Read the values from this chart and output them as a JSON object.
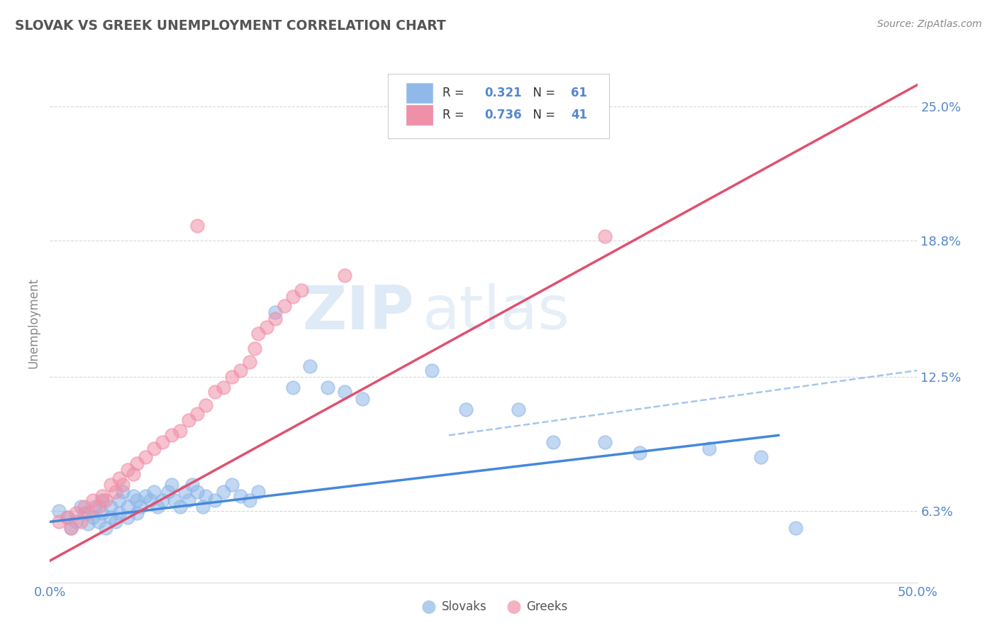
{
  "title": "SLOVAK VS GREEK UNEMPLOYMENT CORRELATION CHART",
  "source": "Source: ZipAtlas.com",
  "ylabel": "Unemployment",
  "xlim": [
    0.0,
    0.5
  ],
  "ylim": [
    0.03,
    0.27
  ],
  "yticks": [
    0.063,
    0.125,
    0.188,
    0.25
  ],
  "ytick_labels": [
    "6.3%",
    "12.5%",
    "18.8%",
    "25.0%"
  ],
  "slovak_color": "#90b8e8",
  "greek_color": "#f090a8",
  "slovak_line_color": "#4488dd",
  "greek_line_color": "#e05070",
  "dashed_line_color": "#90b8e8",
  "r_slovak": 0.321,
  "n_slovak": 61,
  "r_greek": 0.736,
  "n_greek": 41,
  "legend_label_slovak": "Slovaks",
  "legend_label_greek": "Greeks",
  "watermark_zip": "ZIP",
  "watermark_atlas": "atlas",
  "background_color": "#ffffff",
  "grid_color": "#cccccc",
  "title_color": "#555555",
  "axis_label_color": "#5588cc",
  "slovak_points": [
    [
      0.005,
      0.063
    ],
    [
      0.01,
      0.06
    ],
    [
      0.012,
      0.055
    ],
    [
      0.015,
      0.058
    ],
    [
      0.018,
      0.065
    ],
    [
      0.02,
      0.062
    ],
    [
      0.022,
      0.057
    ],
    [
      0.025,
      0.06
    ],
    [
      0.026,
      0.065
    ],
    [
      0.028,
      0.058
    ],
    [
      0.03,
      0.062
    ],
    [
      0.03,
      0.068
    ],
    [
      0.032,
      0.055
    ],
    [
      0.035,
      0.06
    ],
    [
      0.035,
      0.065
    ],
    [
      0.038,
      0.058
    ],
    [
      0.04,
      0.062
    ],
    [
      0.04,
      0.068
    ],
    [
      0.042,
      0.072
    ],
    [
      0.045,
      0.06
    ],
    [
      0.045,
      0.065
    ],
    [
      0.048,
      0.07
    ],
    [
      0.05,
      0.062
    ],
    [
      0.05,
      0.068
    ],
    [
      0.052,
      0.065
    ],
    [
      0.055,
      0.07
    ],
    [
      0.058,
      0.068
    ],
    [
      0.06,
      0.072
    ],
    [
      0.062,
      0.065
    ],
    [
      0.065,
      0.068
    ],
    [
      0.068,
      0.072
    ],
    [
      0.07,
      0.075
    ],
    [
      0.072,
      0.068
    ],
    [
      0.075,
      0.065
    ],
    [
      0.078,
      0.072
    ],
    [
      0.08,
      0.068
    ],
    [
      0.082,
      0.075
    ],
    [
      0.085,
      0.072
    ],
    [
      0.088,
      0.065
    ],
    [
      0.09,
      0.07
    ],
    [
      0.095,
      0.068
    ],
    [
      0.1,
      0.072
    ],
    [
      0.105,
      0.075
    ],
    [
      0.11,
      0.07
    ],
    [
      0.115,
      0.068
    ],
    [
      0.12,
      0.072
    ],
    [
      0.13,
      0.155
    ],
    [
      0.14,
      0.12
    ],
    [
      0.15,
      0.13
    ],
    [
      0.16,
      0.12
    ],
    [
      0.17,
      0.118
    ],
    [
      0.18,
      0.115
    ],
    [
      0.22,
      0.128
    ],
    [
      0.24,
      0.11
    ],
    [
      0.27,
      0.11
    ],
    [
      0.29,
      0.095
    ],
    [
      0.32,
      0.095
    ],
    [
      0.34,
      0.09
    ],
    [
      0.38,
      0.092
    ],
    [
      0.41,
      0.088
    ],
    [
      0.43,
      0.055
    ]
  ],
  "greek_points": [
    [
      0.005,
      0.058
    ],
    [
      0.01,
      0.06
    ],
    [
      0.012,
      0.055
    ],
    [
      0.015,
      0.062
    ],
    [
      0.018,
      0.058
    ],
    [
      0.02,
      0.065
    ],
    [
      0.022,
      0.062
    ],
    [
      0.025,
      0.068
    ],
    [
      0.028,
      0.065
    ],
    [
      0.03,
      0.07
    ],
    [
      0.032,
      0.068
    ],
    [
      0.035,
      0.075
    ],
    [
      0.038,
      0.072
    ],
    [
      0.04,
      0.078
    ],
    [
      0.042,
      0.075
    ],
    [
      0.045,
      0.082
    ],
    [
      0.048,
      0.08
    ],
    [
      0.05,
      0.085
    ],
    [
      0.055,
      0.088
    ],
    [
      0.06,
      0.092
    ],
    [
      0.065,
      0.095
    ],
    [
      0.07,
      0.098
    ],
    [
      0.075,
      0.1
    ],
    [
      0.08,
      0.105
    ],
    [
      0.085,
      0.108
    ],
    [
      0.09,
      0.112
    ],
    [
      0.095,
      0.118
    ],
    [
      0.1,
      0.12
    ],
    [
      0.105,
      0.125
    ],
    [
      0.11,
      0.128
    ],
    [
      0.115,
      0.132
    ],
    [
      0.118,
      0.138
    ],
    [
      0.12,
      0.145
    ],
    [
      0.125,
      0.148
    ],
    [
      0.13,
      0.152
    ],
    [
      0.135,
      0.158
    ],
    [
      0.14,
      0.162
    ],
    [
      0.145,
      0.165
    ],
    [
      0.17,
      0.172
    ],
    [
      0.32,
      0.19
    ],
    [
      0.085,
      0.195
    ]
  ],
  "slovak_line": {
    "x0": 0.0,
    "x1": 0.42,
    "y0": 0.058,
    "y1": 0.098
  },
  "greek_line": {
    "x0": 0.0,
    "x1": 0.5,
    "y0": 0.04,
    "y1": 0.26
  },
  "dashed_line": {
    "x0": 0.23,
    "x1": 0.5,
    "y0": 0.098,
    "y1": 0.128
  }
}
